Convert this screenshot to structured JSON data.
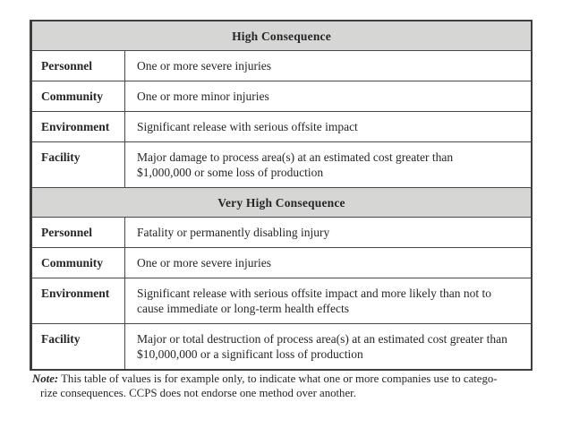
{
  "table": {
    "sections": [
      {
        "header": "High Consequence",
        "rows": [
          {
            "category": "Personnel",
            "description": "One or more severe injuries"
          },
          {
            "category": "Community",
            "description": "One or more minor injuries"
          },
          {
            "category": "Environment",
            "description": "Significant release with serious offsite impact"
          },
          {
            "category": "Facility",
            "description": "Major damage to process area(s) at an estimated cost greater than $1,000,000 or some loss of production"
          }
        ]
      },
      {
        "header": "Very High Consequence",
        "rows": [
          {
            "category": "Personnel",
            "description": "Fatality or permanently disabling injury"
          },
          {
            "category": "Community",
            "description": "One or more severe injuries"
          },
          {
            "category": "Environment",
            "description": "Significant release with serious offsite impact and more likely than not to cause immediate or long-term health effects"
          },
          {
            "category": "Facility",
            "description": "Major or total destruction of process area(s) at an estimated cost greater than $10,000,000 or a significant loss of production"
          }
        ]
      }
    ]
  },
  "note": {
    "label": "Note:",
    "line1": " This table of values is for example only, to indicate what one or more companies use to catego-",
    "line2": "rize consequences. CCPS does not endorse one method over another."
  },
  "colors": {
    "header_bg": "#d6d6d4",
    "border": "#3e3e40",
    "grid_line": "#48484a",
    "text": "#26262a"
  }
}
